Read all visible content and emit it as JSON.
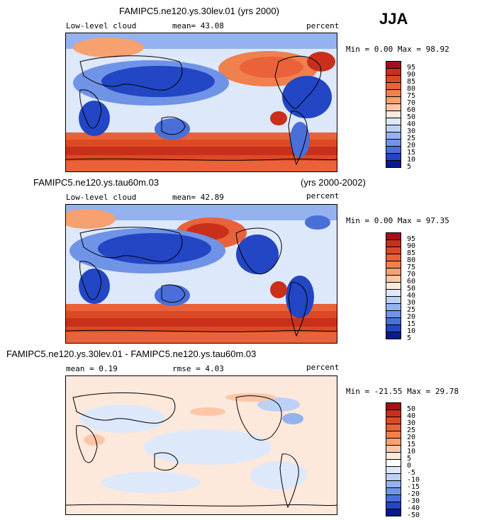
{
  "season": "JJA",
  "panels": [
    {
      "title": "FAMIPC5.ne120.ys.30lev.01 (yrs 2000)",
      "left_label": "Low-level cloud",
      "stat_label": "mean=  43.08",
      "units": "percent",
      "minmax": "Min =   0.00 Max =  98.92",
      "levels": [
        "95",
        "90",
        "85",
        "80",
        "75",
        "70",
        "60",
        "50",
        "40",
        "30",
        "25",
        "20",
        "15",
        "10",
        "5"
      ]
    },
    {
      "title": "FAMIPC5.ne120.ys.tau60m.03",
      "title_right": "(yrs 2000-2002)",
      "left_label": "Low-level cloud",
      "stat_label": "mean=  42.89",
      "units": "percent",
      "minmax": "Min =   0.00 Max =  97.35",
      "levels": [
        "95",
        "90",
        "85",
        "80",
        "75",
        "70",
        "60",
        "50",
        "40",
        "30",
        "25",
        "20",
        "15",
        "10",
        "5"
      ]
    },
    {
      "title": "FAMIPC5.ne120.ys.30lev.01 - FAMIPC5.ne120.ys.tau60m.03",
      "left_label": "mean =   0.19",
      "stat_label": "rmse =   4.03",
      "units": "percent",
      "minmax": "Min = -21.55 Max =  29.78",
      "levels": [
        "50",
        "40",
        "30",
        "25",
        "20",
        "15",
        "10",
        "5",
        "0",
        "-5",
        "-10",
        "-15",
        "-20",
        "-30",
        "-40",
        "-50"
      ]
    }
  ],
  "colors": {
    "abs_scale": [
      "#a50f15",
      "#c8301c",
      "#dc4a25",
      "#e9623a",
      "#f0804e",
      "#f6a16f",
      "#fbc7a8",
      "#fde8dc",
      "#dde8fb",
      "#bdd1f7",
      "#93b2ef",
      "#6f93e6",
      "#4a6fd8",
      "#2246c4",
      "#0a1a8c"
    ],
    "diff_scale": [
      "#a50f15",
      "#c8301c",
      "#dc4a25",
      "#e9623a",
      "#f0804e",
      "#f6a16f",
      "#fbc7a8",
      "#fde8dc",
      "#ffffff",
      "#dde8fb",
      "#bdd1f7",
      "#93b2ef",
      "#6f93e6",
      "#4a6fd8",
      "#2246c4",
      "#0a1a8c"
    ]
  }
}
